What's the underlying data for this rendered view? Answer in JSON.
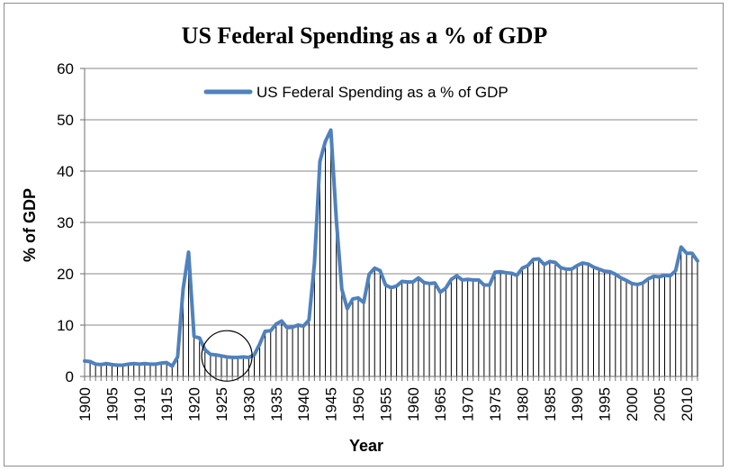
{
  "chart_data": {
    "type": "line",
    "title": "US Federal Spending as a % of GDP",
    "xlabel": "Year",
    "ylabel": "% of GDP",
    "ylim": [
      0,
      60
    ],
    "yticks": [
      0,
      10,
      20,
      30,
      40,
      50,
      60
    ],
    "xlim": [
      1900,
      2012
    ],
    "xticks": [
      1900,
      1905,
      1910,
      1915,
      1920,
      1925,
      1930,
      1935,
      1940,
      1945,
      1950,
      1955,
      1960,
      1965,
      1970,
      1975,
      1980,
      1985,
      1990,
      1995,
      2000,
      2005,
      2010
    ],
    "grid": true,
    "legend_position": "top-center",
    "drop_lines": true,
    "annotation": "circle around 1923-1929",
    "colors": {
      "series": "#4f81bd",
      "drop_lines": "#000000",
      "grid": "#888888"
    },
    "series": [
      {
        "name": "US Federal Spending as a % of GDP",
        "x": [
          1900,
          1901,
          1902,
          1903,
          1904,
          1905,
          1906,
          1907,
          1908,
          1909,
          1910,
          1911,
          1912,
          1913,
          1914,
          1915,
          1916,
          1917,
          1918,
          1919,
          1920,
          1921,
          1922,
          1923,
          1924,
          1925,
          1926,
          1927,
          1928,
          1929,
          1930,
          1931,
          1932,
          1933,
          1934,
          1935,
          1936,
          1937,
          1938,
          1939,
          1940,
          1941,
          1942,
          1943,
          1944,
          1945,
          1946,
          1947,
          1948,
          1949,
          1950,
          1951,
          1952,
          1953,
          1954,
          1955,
          1956,
          1957,
          1958,
          1959,
          1960,
          1961,
          1962,
          1963,
          1964,
          1965,
          1966,
          1967,
          1968,
          1969,
          1970,
          1971,
          1972,
          1973,
          1974,
          1975,
          1976,
          1977,
          1978,
          1979,
          1980,
          1981,
          1982,
          1983,
          1984,
          1985,
          1986,
          1987,
          1988,
          1989,
          1990,
          1991,
          1992,
          1993,
          1994,
          1995,
          1996,
          1997,
          1998,
          1999,
          2000,
          2001,
          2002,
          2003,
          2004,
          2005,
          2006,
          2007,
          2008,
          2009,
          2010,
          2011,
          2012
        ],
        "values": [
          3.0,
          2.9,
          2.4,
          2.3,
          2.5,
          2.3,
          2.2,
          2.2,
          2.4,
          2.5,
          2.4,
          2.5,
          2.4,
          2.4,
          2.6,
          2.7,
          2.0,
          3.8,
          17.0,
          24.2,
          7.8,
          7.5,
          5.2,
          4.3,
          4.2,
          4.0,
          3.8,
          3.7,
          3.7,
          3.8,
          3.7,
          4.2,
          6.3,
          8.8,
          8.9,
          10.2,
          10.8,
          9.5,
          9.6,
          10.0,
          9.8,
          11.0,
          22.0,
          41.9,
          45.8,
          48.0,
          30.5,
          17.0,
          13.2,
          15.1,
          15.3,
          14.4,
          19.9,
          21.1,
          20.6,
          17.8,
          17.3,
          17.6,
          18.5,
          18.4,
          18.4,
          19.2,
          18.3,
          18.1,
          18.2,
          16.4,
          17.2,
          18.9,
          19.6,
          18.8,
          18.9,
          18.8,
          18.8,
          17.8,
          17.8,
          20.3,
          20.4,
          20.2,
          20.1,
          19.7,
          21.1,
          21.6,
          22.8,
          22.9,
          21.8,
          22.4,
          22.2,
          21.2,
          20.9,
          20.9,
          21.6,
          22.1,
          21.9,
          21.3,
          20.9,
          20.5,
          20.4,
          19.9,
          19.2,
          18.7,
          18.1,
          17.9,
          18.2,
          19.0,
          19.5,
          19.4,
          19.7,
          19.6,
          20.6,
          25.2,
          24.0,
          24.0,
          22.5
        ]
      }
    ]
  }
}
